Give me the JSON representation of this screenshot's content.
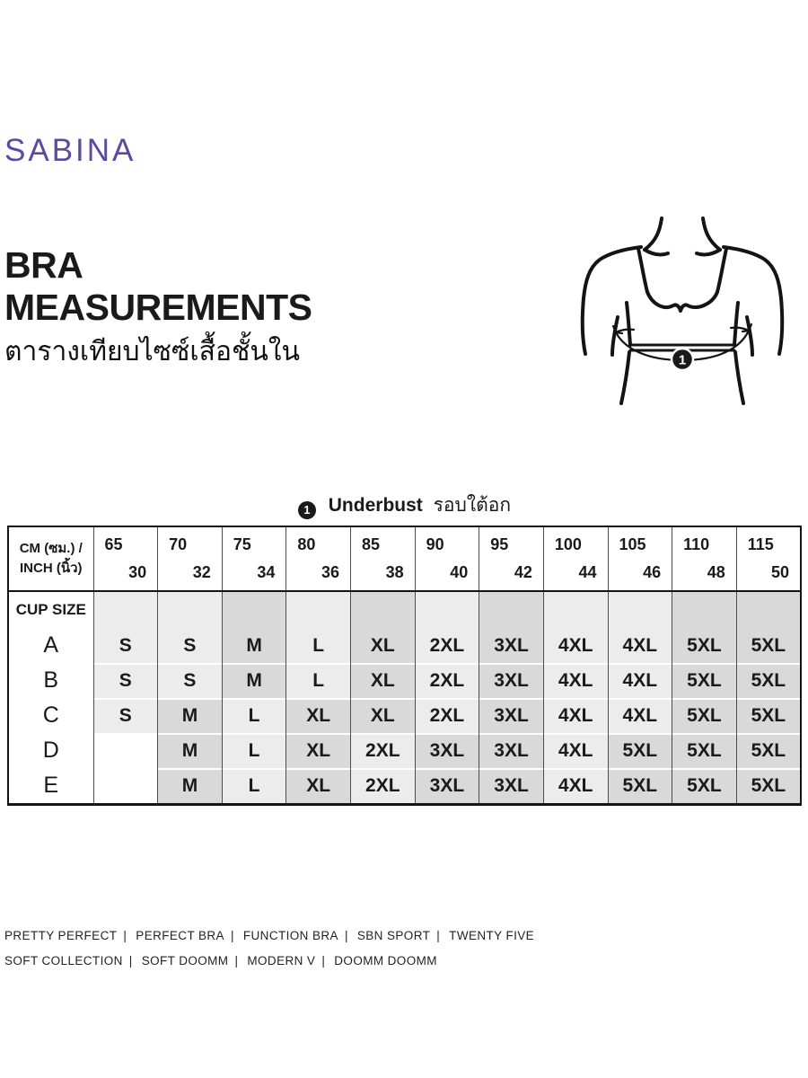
{
  "brand": {
    "name": "SABINA"
  },
  "colors": {
    "brand_purple": "#5b4aa0",
    "ink": "#1a1a1a",
    "cell_light": "#ececec",
    "cell_dark": "#d9d9d9",
    "grid_line": "#4d4d4d"
  },
  "heading": {
    "line1": "BRA",
    "line2": "MEASUREMENTS",
    "subtitle_thai": "ตารางเทียบไซซ์เสื้อชั้นใน"
  },
  "figure": {
    "badge": "1"
  },
  "section_label": {
    "badge": "1",
    "en": "Underbust",
    "th": "รอบใต้อก"
  },
  "table": {
    "corner": {
      "line1": "CM (ซม.) /",
      "line2": "INCH (นิ้ว)"
    },
    "cup_size_label": "CUP SIZE",
    "columns": [
      {
        "cm": "65",
        "inch": "30"
      },
      {
        "cm": "70",
        "inch": "32"
      },
      {
        "cm": "75",
        "inch": "34"
      },
      {
        "cm": "80",
        "inch": "36"
      },
      {
        "cm": "85",
        "inch": "38"
      },
      {
        "cm": "90",
        "inch": "40"
      },
      {
        "cm": "95",
        "inch": "42"
      },
      {
        "cm": "100",
        "inch": "44"
      },
      {
        "cm": "105",
        "inch": "46"
      },
      {
        "cm": "110",
        "inch": "48"
      },
      {
        "cm": "115",
        "inch": "50"
      }
    ],
    "rows": [
      {
        "cup": "A",
        "values": [
          "S",
          "S",
          "M",
          "L",
          "XL",
          "2XL",
          "3XL",
          "4XL",
          "4XL",
          "5XL",
          "5XL"
        ]
      },
      {
        "cup": "B",
        "values": [
          "S",
          "S",
          "M",
          "L",
          "XL",
          "2XL",
          "3XL",
          "4XL",
          "4XL",
          "5XL",
          "5XL"
        ]
      },
      {
        "cup": "C",
        "values": [
          "S",
          "M",
          "L",
          "XL",
          "XL",
          "2XL",
          "3XL",
          "4XL",
          "4XL",
          "5XL",
          "5XL"
        ]
      },
      {
        "cup": "D",
        "values": [
          "",
          "M",
          "L",
          "XL",
          "2XL",
          "3XL",
          "3XL",
          "4XL",
          "5XL",
          "5XL",
          "5XL"
        ]
      },
      {
        "cup": "E",
        "values": [
          "",
          "M",
          "L",
          "XL",
          "2XL",
          "3XL",
          "3XL",
          "4XL",
          "5XL",
          "5XL",
          "5XL"
        ]
      }
    ],
    "shade_by_size": {
      "S": "light",
      "M": "dark",
      "L": "light",
      "XL": "dark",
      "2XL": "light",
      "3XL": "dark",
      "4XL": "light",
      "5XL": "dark"
    }
  },
  "footer": {
    "line1": [
      "PRETTY PERFECT",
      "PERFECT BRA",
      "FUNCTION BRA",
      "SBN SPORT",
      "TWENTY FIVE"
    ],
    "line2": [
      "SOFT COLLECTION",
      "SOFT DOOMM",
      "MODERN V",
      "DOOMM DOOMM"
    ]
  }
}
